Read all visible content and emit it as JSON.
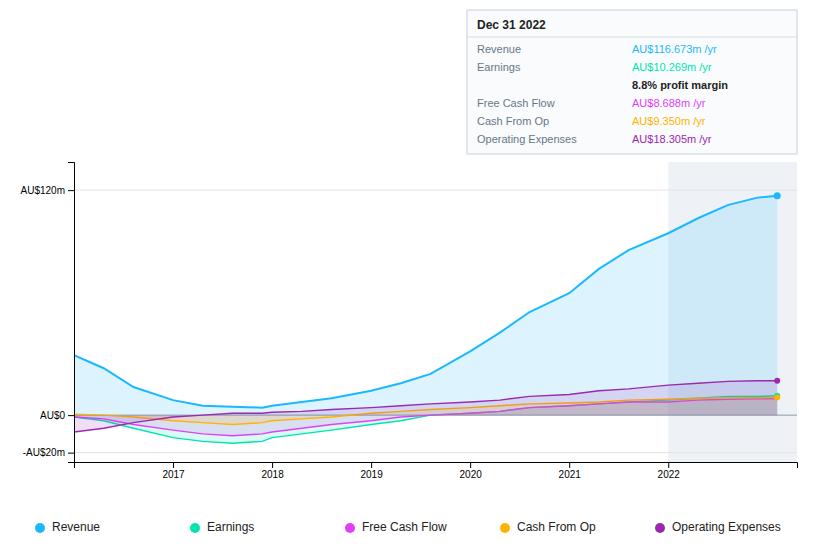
{
  "chart_data": {
    "type": "area",
    "x": [
      2016.0,
      2016.3,
      2016.6,
      2017.0,
      2017.3,
      2017.6,
      2017.9,
      2018.0,
      2018.3,
      2018.6,
      2019.0,
      2019.3,
      2019.6,
      2020.0,
      2020.3,
      2020.6,
      2021.0,
      2021.3,
      2021.6,
      2022.0,
      2022.3,
      2022.6,
      2022.9,
      2023.1
    ],
    "series": [
      {
        "name": "Revenue",
        "color": "#1ab8ff",
        "marker": "circle",
        "values": [
          32,
          25,
          15,
          8,
          5,
          4.5,
          4,
          5,
          7,
          9,
          13,
          17,
          22,
          34,
          44,
          55,
          65,
          78,
          88,
          97,
          105,
          112,
          116,
          117
        ]
      },
      {
        "name": "Earnings",
        "color": "#00e5b0",
        "marker": "circle",
        "values": [
          -1,
          -3,
          -7,
          -12,
          -14,
          -15,
          -14,
          -12,
          -10,
          -8,
          -5,
          -3,
          0,
          1,
          2,
          4,
          5,
          6,
          7,
          8,
          9,
          10,
          10,
          10.3
        ]
      },
      {
        "name": "Free Cash Flow",
        "color": "#e040fb",
        "values": [
          -1,
          -2,
          -5,
          -8,
          -10,
          -11,
          -10,
          -9,
          -7,
          -5,
          -3,
          -1,
          0,
          1,
          2,
          4,
          5,
          6,
          7,
          7,
          8,
          8.5,
          8.7,
          8.7
        ]
      },
      {
        "name": "Cash From Op",
        "color": "#ffb300",
        "marker": "circle",
        "values": [
          0.5,
          0,
          -1,
          -3,
          -4,
          -5,
          -4,
          -3,
          -2,
          -1,
          1,
          2,
          3,
          4,
          5,
          6,
          6.5,
          7,
          8,
          8.5,
          9,
          9.2,
          9.3,
          9.4
        ]
      },
      {
        "name": "Operating Expenses",
        "color": "#9c27b0",
        "marker": "circle",
        "values": [
          -9,
          -7,
          -4,
          -1,
          0,
          1,
          1,
          1.5,
          2,
          3,
          4,
          5,
          6,
          7,
          8,
          10,
          11,
          13,
          14,
          16,
          17,
          18,
          18.3,
          18.3
        ]
      }
    ],
    "xlim": [
      2016.0,
      2023.3
    ],
    "ylim": [
      -25,
      135
    ],
    "xticks": [
      2017,
      2018,
      2019,
      2020,
      2021,
      2022
    ],
    "yticks": [
      {
        "value": 120,
        "label": "AU$120m"
      },
      {
        "value": 0,
        "label": "AU$0"
      },
      {
        "value": -20,
        "label": "-AU$20m"
      }
    ],
    "highlight_x": [
      2022.0,
      2023.3
    ],
    "grid": true,
    "legend": "bottom",
    "annotations": {
      "title": "Dec 31 2022",
      "rows": [
        {
          "label": "Revenue",
          "value": "AU$116.673m /yr",
          "color": "#1ab8ff"
        },
        {
          "label": "Earnings",
          "value": "AU$10.269m /yr",
          "color": "#00e5b0"
        },
        {
          "value": "8.8% profit margin"
        },
        {
          "label": "Free Cash Flow",
          "value": "AU$8.688m /yr",
          "color": "#e040fb"
        },
        {
          "label": "Cash From Op",
          "value": "AU$9.350m /yr",
          "color": "#ffb300"
        },
        {
          "label": "Operating Expenses",
          "value": "AU$18.305m /yr",
          "color": "#9c27b0"
        }
      ]
    }
  }
}
